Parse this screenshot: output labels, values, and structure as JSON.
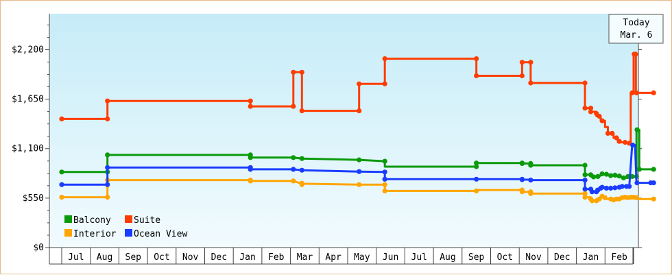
{
  "chart_data": {
    "type": "line",
    "title": "",
    "xlabel": "",
    "ylabel": "",
    "ylim": [
      0,
      2600
    ],
    "y_ticks": [
      {
        "value": 0,
        "label": "$0"
      },
      {
        "value": 550,
        "label": "$550"
      },
      {
        "value": 1100,
        "label": "$1,100"
      },
      {
        "value": 1650,
        "label": "$1,650"
      },
      {
        "value": 2200,
        "label": "$2,200"
      }
    ],
    "x_range": [
      0,
      20.7
    ],
    "month_labels": [
      "Jul",
      "Aug",
      "Sep",
      "Oct",
      "Nov",
      "Dec",
      "Jan",
      "Feb",
      "Mar",
      "Apr",
      "May",
      "Jun",
      "Jul",
      "Aug",
      "Sep",
      "Oct",
      "Nov",
      "Dec",
      "Jan",
      "Feb"
    ],
    "grid": false,
    "legend_position": "bottom-left",
    "today": {
      "line1": "Today",
      "line2": "Mar. 6",
      "x": 20.7
    },
    "series": [
      {
        "name": "Balcony",
        "color": "#0a9a0a",
        "points": [
          [
            0,
            840
          ],
          [
            1.6,
            840
          ],
          [
            1.6,
            1030
          ],
          [
            6.6,
            1030
          ],
          [
            6.6,
            1000
          ],
          [
            8.1,
            1000
          ],
          [
            8.4,
            990
          ],
          [
            10.4,
            975
          ],
          [
            11.3,
            960
          ],
          [
            11.3,
            900
          ],
          [
            14.5,
            900
          ],
          [
            14.5,
            940
          ],
          [
            16.1,
            940
          ],
          [
            16.1,
            935
          ],
          [
            16.4,
            935
          ],
          [
            16.4,
            915
          ],
          [
            18.3,
            915
          ],
          [
            18.3,
            810
          ],
          [
            18.5,
            810
          ],
          [
            18.5,
            790
          ],
          [
            18.7,
            780
          ],
          [
            18.7,
            800
          ],
          [
            18.85,
            800
          ],
          [
            18.85,
            820
          ],
          [
            19.0,
            820
          ],
          [
            19.0,
            810
          ],
          [
            19.15,
            810
          ],
          [
            19.2,
            800
          ],
          [
            19.35,
            800
          ],
          [
            19.45,
            790
          ],
          [
            19.55,
            790
          ],
          [
            19.6,
            775
          ],
          [
            19.75,
            775
          ],
          [
            19.8,
            790
          ],
          [
            19.9,
            790
          ],
          [
            20.1,
            790
          ],
          [
            20.1,
            1310
          ],
          [
            20.2,
            1310
          ],
          [
            20.2,
            870
          ],
          [
            20.7,
            870
          ]
        ],
        "markers": [
          [
            0,
            840
          ],
          [
            1.6,
            840
          ],
          [
            1.6,
            1030
          ],
          [
            6.6,
            1030
          ],
          [
            6.6,
            1000
          ],
          [
            8.1,
            1000
          ],
          [
            8.4,
            990
          ],
          [
            10.4,
            975
          ],
          [
            11.3,
            960
          ],
          [
            14.5,
            900
          ],
          [
            14.5,
            940
          ],
          [
            16.1,
            940
          ],
          [
            16.1,
            935
          ],
          [
            16.4,
            935
          ],
          [
            16.4,
            915
          ],
          [
            18.3,
            915
          ],
          [
            18.3,
            810
          ],
          [
            18.5,
            810
          ],
          [
            18.6,
            785
          ],
          [
            18.75,
            790
          ],
          [
            18.9,
            820
          ],
          [
            19.05,
            815
          ],
          [
            19.2,
            800
          ],
          [
            19.35,
            805
          ],
          [
            19.5,
            795
          ],
          [
            19.65,
            775
          ],
          [
            19.8,
            790
          ],
          [
            19.95,
            790
          ],
          [
            20.1,
            790
          ],
          [
            20.12,
            1310
          ],
          [
            20.2,
            870
          ],
          [
            20.7,
            870
          ]
        ]
      },
      {
        "name": "Suite",
        "color": "#ff3d00",
        "points": [
          [
            0,
            1430
          ],
          [
            1.6,
            1430
          ],
          [
            1.6,
            1630
          ],
          [
            6.6,
            1630
          ],
          [
            6.6,
            1570
          ],
          [
            8.1,
            1570
          ],
          [
            8.1,
            1950
          ],
          [
            8.4,
            1950
          ],
          [
            8.4,
            1520
          ],
          [
            10.4,
            1520
          ],
          [
            10.4,
            1820
          ],
          [
            11.3,
            1820
          ],
          [
            11.3,
            2100
          ],
          [
            14.5,
            2100
          ],
          [
            14.5,
            1910
          ],
          [
            16.1,
            1910
          ],
          [
            16.1,
            2060
          ],
          [
            16.4,
            2060
          ],
          [
            16.4,
            1830
          ],
          [
            18.3,
            1830
          ],
          [
            18.3,
            1550
          ],
          [
            18.5,
            1550
          ],
          [
            18.5,
            1510
          ],
          [
            18.7,
            1510
          ],
          [
            18.7,
            1460
          ],
          [
            18.85,
            1460
          ],
          [
            18.85,
            1410
          ],
          [
            19.0,
            1410
          ],
          [
            19.0,
            1340
          ],
          [
            19.1,
            1340
          ],
          [
            19.1,
            1270
          ],
          [
            19.3,
            1270
          ],
          [
            19.3,
            1220
          ],
          [
            19.45,
            1220
          ],
          [
            19.45,
            1170
          ],
          [
            19.7,
            1170
          ],
          [
            19.7,
            1160
          ],
          [
            19.9,
            1160
          ],
          [
            19.9,
            1720
          ],
          [
            20.0,
            1720
          ],
          [
            20.0,
            2150
          ],
          [
            20.08,
            2150
          ],
          [
            20.08,
            1720
          ],
          [
            20.7,
            1720
          ]
        ],
        "markers": [
          [
            0,
            1430
          ],
          [
            1.6,
            1430
          ],
          [
            1.6,
            1630
          ],
          [
            6.6,
            1630
          ],
          [
            6.6,
            1570
          ],
          [
            8.1,
            1570
          ],
          [
            8.1,
            1950
          ],
          [
            8.4,
            1950
          ],
          [
            8.4,
            1520
          ],
          [
            10.4,
            1520
          ],
          [
            10.4,
            1820
          ],
          [
            11.3,
            1820
          ],
          [
            11.3,
            2100
          ],
          [
            14.5,
            2100
          ],
          [
            14.5,
            1910
          ],
          [
            16.1,
            1910
          ],
          [
            16.1,
            2060
          ],
          [
            16.4,
            2060
          ],
          [
            16.4,
            1830
          ],
          [
            18.3,
            1830
          ],
          [
            18.3,
            1550
          ],
          [
            18.5,
            1550
          ],
          [
            18.5,
            1510
          ],
          [
            18.7,
            1490
          ],
          [
            18.8,
            1460
          ],
          [
            18.9,
            1410
          ],
          [
            19.1,
            1270
          ],
          [
            19.25,
            1270
          ],
          [
            19.4,
            1220
          ],
          [
            19.5,
            1180
          ],
          [
            19.7,
            1170
          ],
          [
            19.85,
            1160
          ],
          [
            19.95,
            1720
          ],
          [
            20.02,
            2150
          ],
          [
            20.07,
            2150
          ],
          [
            20.1,
            1720
          ],
          [
            20.7,
            1720
          ]
        ]
      },
      {
        "name": "Interior",
        "color": "#ffa500",
        "points": [
          [
            0,
            560
          ],
          [
            1.6,
            560
          ],
          [
            1.6,
            750
          ],
          [
            6.6,
            750
          ],
          [
            6.6,
            740
          ],
          [
            8.1,
            740
          ],
          [
            8.4,
            710
          ],
          [
            10.4,
            700
          ],
          [
            11.3,
            700
          ],
          [
            11.3,
            630
          ],
          [
            14.5,
            630
          ],
          [
            14.5,
            640
          ],
          [
            16.1,
            640
          ],
          [
            16.1,
            620
          ],
          [
            16.4,
            620
          ],
          [
            16.4,
            600
          ],
          [
            18.3,
            600
          ],
          [
            18.3,
            560
          ],
          [
            18.5,
            560
          ],
          [
            18.5,
            520
          ],
          [
            18.7,
            520
          ],
          [
            18.7,
            540
          ],
          [
            18.85,
            540
          ],
          [
            18.85,
            570
          ],
          [
            19.0,
            570
          ],
          [
            19.0,
            540
          ],
          [
            19.2,
            540
          ],
          [
            19.35,
            530
          ],
          [
            19.5,
            540
          ],
          [
            19.6,
            560
          ],
          [
            19.75,
            560
          ],
          [
            19.85,
            560
          ],
          [
            20.0,
            560
          ],
          [
            20.1,
            560
          ],
          [
            20.1,
            540
          ],
          [
            20.7,
            540
          ]
        ],
        "markers": [
          [
            0,
            560
          ],
          [
            1.6,
            560
          ],
          [
            1.6,
            750
          ],
          [
            6.6,
            750
          ],
          [
            6.6,
            740
          ],
          [
            8.1,
            740
          ],
          [
            8.4,
            715
          ],
          [
            8.4,
            700
          ],
          [
            10.4,
            700
          ],
          [
            11.3,
            700
          ],
          [
            11.3,
            630
          ],
          [
            14.5,
            630
          ],
          [
            16.1,
            640
          ],
          [
            16.1,
            620
          ],
          [
            16.4,
            620
          ],
          [
            16.4,
            600
          ],
          [
            18.3,
            600
          ],
          [
            18.3,
            560
          ],
          [
            18.5,
            540
          ],
          [
            18.55,
            520
          ],
          [
            18.7,
            520
          ],
          [
            18.8,
            540
          ],
          [
            18.9,
            570
          ],
          [
            19.0,
            555
          ],
          [
            19.2,
            540
          ],
          [
            19.3,
            530
          ],
          [
            19.4,
            540
          ],
          [
            19.5,
            540
          ],
          [
            19.6,
            555
          ],
          [
            19.7,
            560
          ],
          [
            19.8,
            555
          ],
          [
            19.9,
            560
          ],
          [
            20.0,
            560
          ],
          [
            20.1,
            555
          ],
          [
            20.7,
            540
          ]
        ]
      },
      {
        "name": "Ocean View",
        "color": "#1a3cff",
        "points": [
          [
            0,
            700
          ],
          [
            1.6,
            700
          ],
          [
            1.6,
            890
          ],
          [
            6.6,
            890
          ],
          [
            6.6,
            870
          ],
          [
            8.1,
            870
          ],
          [
            8.4,
            860
          ],
          [
            10.4,
            845
          ],
          [
            11.3,
            840
          ],
          [
            11.3,
            760
          ],
          [
            14.5,
            760
          ],
          [
            14.5,
            760
          ],
          [
            16.1,
            760
          ],
          [
            16.1,
            755
          ],
          [
            16.4,
            755
          ],
          [
            16.4,
            750
          ],
          [
            18.3,
            750
          ],
          [
            18.3,
            650
          ],
          [
            18.5,
            650
          ],
          [
            18.5,
            620
          ],
          [
            18.7,
            620
          ],
          [
            18.7,
            650
          ],
          [
            18.85,
            650
          ],
          [
            18.85,
            670
          ],
          [
            19.0,
            670
          ],
          [
            19.0,
            660
          ],
          [
            19.2,
            660
          ],
          [
            19.35,
            665
          ],
          [
            19.5,
            670
          ],
          [
            19.6,
            680
          ],
          [
            19.75,
            680
          ],
          [
            19.85,
            680
          ],
          [
            19.95,
            1140
          ],
          [
            20.05,
            1140
          ],
          [
            20.1,
            720
          ],
          [
            20.6,
            720
          ],
          [
            20.6,
            720
          ],
          [
            20.7,
            720
          ]
        ],
        "markers": [
          [
            0,
            700
          ],
          [
            1.6,
            700
          ],
          [
            1.6,
            890
          ],
          [
            6.6,
            890
          ],
          [
            6.6,
            870
          ],
          [
            8.1,
            870
          ],
          [
            8.4,
            860
          ],
          [
            10.4,
            845
          ],
          [
            11.3,
            840
          ],
          [
            11.3,
            760
          ],
          [
            14.5,
            760
          ],
          [
            16.1,
            760
          ],
          [
            16.1,
            755
          ],
          [
            16.4,
            750
          ],
          [
            18.3,
            750
          ],
          [
            18.3,
            650
          ],
          [
            18.5,
            650
          ],
          [
            18.55,
            620
          ],
          [
            18.7,
            620
          ],
          [
            18.75,
            640
          ],
          [
            18.85,
            660
          ],
          [
            18.9,
            670
          ],
          [
            19.05,
            660
          ],
          [
            19.2,
            660
          ],
          [
            19.35,
            665
          ],
          [
            19.5,
            670
          ],
          [
            19.6,
            680
          ],
          [
            19.75,
            680
          ],
          [
            19.85,
            680
          ],
          [
            19.97,
            1140
          ],
          [
            20.12,
            720
          ],
          [
            20.6,
            720
          ],
          [
            20.7,
            720
          ]
        ]
      }
    ]
  }
}
